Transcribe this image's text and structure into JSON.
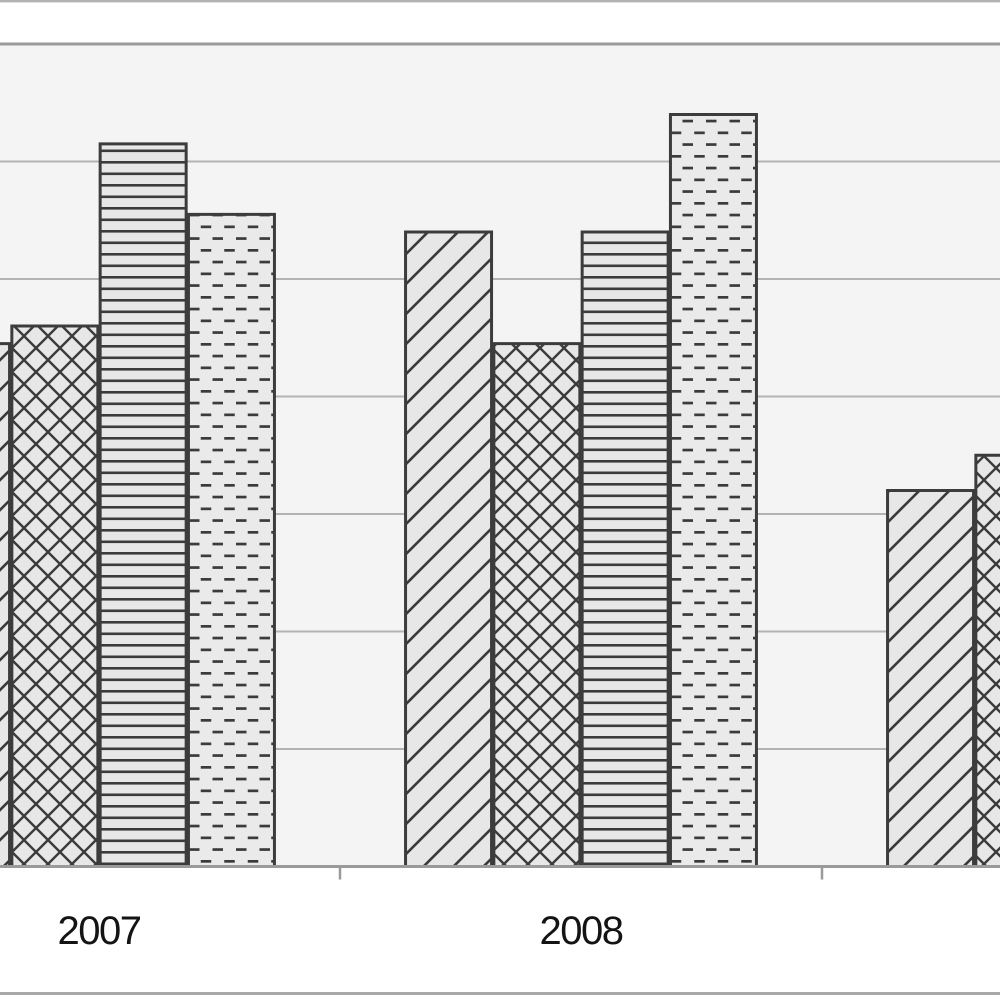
{
  "chart_data": {
    "type": "bar",
    "title": "",
    "categories": [
      "2007",
      "2008",
      ""
    ],
    "series": [
      {
        "name": "diagonal-hatch",
        "pattern": "diagonal",
        "values": [
          4.45,
          5.4,
          3.2
        ]
      },
      {
        "name": "crosshatch",
        "pattern": "crosshatch",
        "values": [
          4.6,
          4.45,
          3.5
        ]
      },
      {
        "name": "horizontal-lines",
        "pattern": "horizontal-lines",
        "values": [
          6.15,
          5.4,
          null
        ]
      },
      {
        "name": "dashes",
        "pattern": "dashes",
        "values": [
          5.55,
          6.4,
          null
        ]
      }
    ],
    "xlabel": "",
    "ylabel": "",
    "ylim": [
      0,
      7
    ],
    "y_unit": "gridline-intervals (y-axis tick labels not visible in cropped view)",
    "grid": true,
    "legend_position": "not visible",
    "notes": "cropped screenshot: first 2007 bar clipped at left edge, third year group clipped at right edge"
  },
  "colors": {
    "background": "#ffffff",
    "plot_background": "#f4f4f4",
    "bar_fill": "#e7e7e7",
    "bar_fill_dashes": "#eaeaea",
    "hatch_line": "#3b3b3b",
    "bar_border": "#3c3c3c",
    "gridline": "#b3b3b3",
    "axis_line": "#9a9a9a",
    "frame_line": "#a8a8a8",
    "label_text": "#141414"
  }
}
